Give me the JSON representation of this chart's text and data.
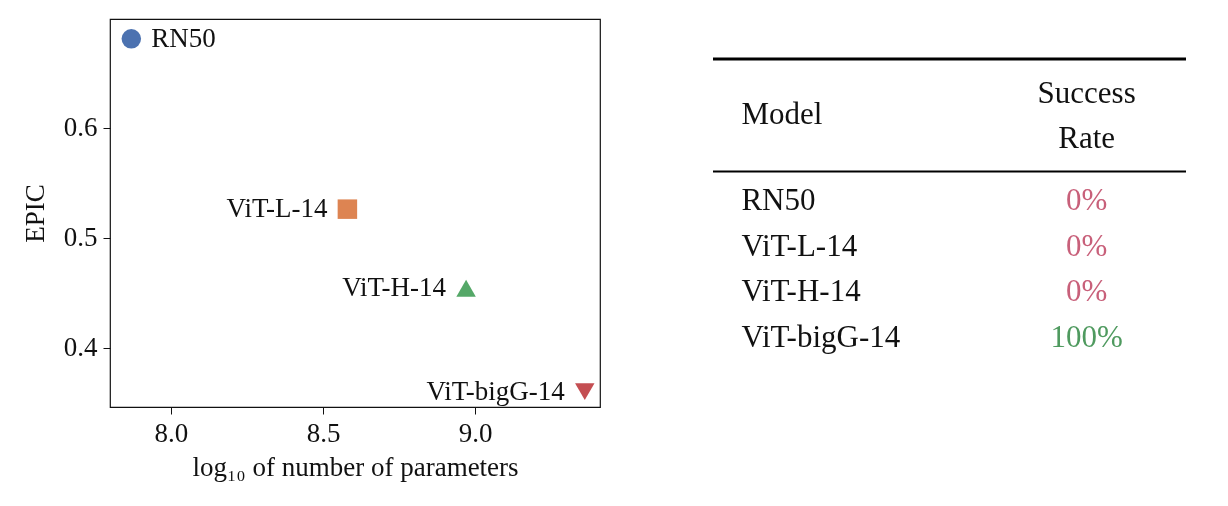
{
  "chart_data": [
    {
      "type": "scatter",
      "xlabel": "log₁₀ of number of parameters",
      "ylabel": "EPIC",
      "xlim": [
        7.8,
        9.41
      ],
      "ylim": [
        0.346,
        0.699
      ],
      "xticks": [
        {
          "value": 8,
          "label": "8.0"
        },
        {
          "value": 8.5,
          "label": "8.5"
        },
        {
          "value": 9,
          "label": "9.0"
        }
      ],
      "yticks": [
        0.4,
        0.5,
        0.6
      ],
      "grid": false,
      "series": [
        {
          "name": "RN50",
          "color": "#4c72b0",
          "marker": "circle",
          "x": [
            7.87
          ],
          "values": [
            0.681
          ]
        },
        {
          "name": "ViT-L-14",
          "color": "#dd8452",
          "marker": "square",
          "x": [
            8.58
          ],
          "values": [
            0.526
          ]
        },
        {
          "name": "ViT-H-14",
          "color": "#55a868",
          "marker": "triangle",
          "x": [
            8.97
          ],
          "values": [
            0.454
          ]
        },
        {
          "name": "ViT-bigG-14",
          "color": "#c44e52",
          "marker": "triangle-down",
          "x": [
            9.36
          ],
          "values": [
            0.36
          ]
        }
      ]
    },
    {
      "type": "other",
      "xlabel": "Model",
      "ylabel": "Success Rate",
      "categories": [
        "RN50",
        "ViT-L-14",
        "ViT-H-14",
        "ViT-bigG-14"
      ],
      "value_labels": [
        "0%",
        "0%",
        "0%",
        "100%"
      ],
      "colors": [
        "#c8607a",
        "#c8607a",
        "#c8607a",
        "#4f9a5f"
      ]
    }
  ]
}
